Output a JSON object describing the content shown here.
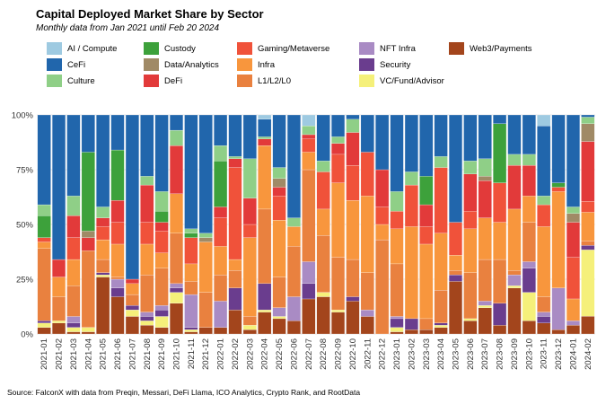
{
  "header": {
    "title": "Capital Deployed Market Share by Sector",
    "subtitle": "Monthly data from Jan 2021 until Feb 20 2024"
  },
  "footer": {
    "source": "Source: FalconX with data from Preqin, Messari, DeFi Llama, ICO Analytics, Crypto Rank, and RootData"
  },
  "colors": {
    "AI / Compute": "#9ecae1",
    "CeFi": "#2166ac",
    "Culture": "#8fcf87",
    "Custody": "#3da13b",
    "Data/Analytics": "#a08a66",
    "DeFi": "#e23a3a",
    "Gaming/Metaverse": "#f0523a",
    "Infra": "#f8963d",
    "L1/L2/L0": "#e9813f",
    "NFT Infra": "#a98bc4",
    "Security": "#6a3d8e",
    "VC/Fund/Advisor": "#f5f07a",
    "Web3/Payments": "#a3451c"
  },
  "legend_rows": [
    [
      "AI / Compute",
      "Custody",
      "Gaming/Metaverse",
      "NFT Infra",
      "Web3/Payments"
    ],
    [
      "CeFi",
      "Data/Analytics",
      "Infra",
      "Security"
    ],
    [
      "Culture",
      "DeFi",
      "L1/L2/L0",
      "VC/Fund/Advisor"
    ]
  ],
  "chart_data": {
    "type": "bar",
    "stacked": true,
    "title": "Capital Deployed Market Share by Sector",
    "xlabel": "",
    "ylabel": "",
    "ylim": [
      0,
      100
    ],
    "yticks": [
      0,
      25,
      50,
      75,
      100
    ],
    "ytick_labels": [
      "0%",
      "25%",
      "50%",
      "75%",
      "100%"
    ],
    "grid": true,
    "legend_position": "top",
    "stack_order": [
      "Web3/Payments",
      "VC/Fund/Advisor",
      "Security",
      "NFT Infra",
      "L1/L2/L0",
      "Infra",
      "Gaming/Metaverse",
      "DeFi",
      "Data/Analytics",
      "Custody",
      "Culture",
      "CeFi",
      "AI / Compute"
    ],
    "categories": [
      "2021-01",
      "2021-02",
      "2021-03",
      "2021-04",
      "2021-05",
      "2021-06",
      "2021-07",
      "2021-08",
      "2021-09",
      "2021-10",
      "2021-11",
      "2021-12",
      "2022-01",
      "2022-02",
      "2022-03",
      "2022-04",
      "2022-05",
      "2022-06",
      "2022-07",
      "2022-08",
      "2022-09",
      "2022-10",
      "2022-11",
      "2022-12",
      "2023-01",
      "2023-02",
      "2023-03",
      "2023-04",
      "2023-05",
      "2023-06",
      "2023-07",
      "2023-08",
      "2023-09",
      "2023-10",
      "2023-11",
      "2023-12",
      "2024-01",
      "2024-02"
    ],
    "series": [
      {
        "name": "Web3/Payments",
        "values": [
          3,
          5,
          1,
          1,
          26,
          17,
          8,
          4,
          3,
          14,
          1,
          3,
          3,
          11,
          2,
          10,
          7,
          6,
          16,
          17,
          10,
          15,
          8,
          0,
          1,
          2,
          2,
          3,
          24,
          6,
          12,
          4,
          21,
          6,
          5,
          2,
          4,
          8
        ]
      },
      {
        "name": "VC/Fund/Advisor",
        "values": [
          2,
          1,
          2,
          2,
          1,
          0,
          3,
          2,
          5,
          5,
          1,
          0,
          0,
          0,
          2,
          1,
          1,
          0,
          0,
          2,
          1,
          0,
          0,
          0,
          2,
          0,
          0,
          1,
          0,
          1,
          1,
          0,
          1,
          13,
          0,
          0,
          0,
          30
        ]
      },
      {
        "name": "Security",
        "values": [
          1,
          0,
          2,
          0,
          1,
          4,
          2,
          2,
          3,
          2,
          1,
          0,
          0,
          10,
          0,
          12,
          0,
          0,
          7,
          0,
          0,
          2,
          0,
          0,
          4,
          5,
          0,
          1,
          3,
          0,
          0,
          10,
          0,
          11,
          3,
          0,
          0,
          2
        ]
      },
      {
        "name": "NFT Infra",
        "values": [
          0,
          0,
          3,
          0,
          0,
          4,
          0,
          2,
          2,
          2,
          15,
          0,
          12,
          0,
          0,
          0,
          4,
          11,
          10,
          0,
          0,
          0,
          3,
          0,
          1,
          0,
          0,
          0,
          0,
          0,
          2,
          0,
          5,
          3,
          2,
          19,
          2,
          0
        ]
      },
      {
        "name": "L1/L2/L0",
        "values": [
          33,
          11,
          14,
          35,
          6,
          1,
          5,
          17,
          17,
          23,
          6,
          16,
          12,
          8,
          4,
          34,
          14,
          23,
          42,
          26,
          24,
          17,
          17,
          43,
          24,
          0,
          5,
          15,
          2,
          21,
          19,
          20,
          2,
          18,
          7,
          0,
          0,
          2
        ]
      },
      {
        "name": "Infra",
        "values": [
          3,
          9,
          12,
          0,
          9,
          15,
          5,
          14,
          7,
          18,
          8,
          23,
          13,
          5,
          36,
          29,
          26,
          9,
          8,
          12,
          34,
          27,
          35,
          7,
          16,
          42,
          34,
          26,
          7,
          20,
          19,
          17,
          28,
          12,
          32,
          44,
          10,
          13
        ]
      },
      {
        "name": "Gaming/Metaverse",
        "values": [
          2,
          0,
          10,
          0,
          6,
          10,
          0,
          10,
          10,
          0,
          12,
          0,
          13,
          42,
          6,
          0,
          11,
          0,
          6,
          17,
          13,
          16,
          20,
          8,
          8,
          19,
          8,
          30,
          15,
          8,
          0,
          18,
          0,
          0,
          10,
          2,
          19,
          5
        ]
      },
      {
        "name": "DeFi",
        "values": [
          0,
          8,
          10,
          6,
          4,
          10,
          2,
          17,
          4,
          22,
          0,
          0,
          5,
          4,
          12,
          3,
          4,
          0,
          2,
          0,
          5,
          15,
          0,
          17,
          0,
          0,
          10,
          0,
          0,
          17,
          17,
          0,
          20,
          14,
          0,
          0,
          16,
          27
        ]
      },
      {
        "name": "Data/Analytics",
        "values": [
          0,
          0,
          0,
          3,
          0,
          0,
          0,
          0,
          0,
          0,
          0,
          2,
          0,
          0,
          0,
          0,
          4,
          0,
          0,
          0,
          0,
          0,
          0,
          0,
          0,
          0,
          0,
          0,
          0,
          0,
          2,
          0,
          0,
          0,
          0,
          0,
          4,
          8
        ]
      },
      {
        "name": "Custody",
        "values": [
          10,
          0,
          0,
          36,
          0,
          23,
          0,
          0,
          5,
          0,
          2,
          0,
          21,
          0,
          0,
          0,
          0,
          0,
          0,
          0,
          0,
          0,
          0,
          0,
          0,
          0,
          13,
          0,
          0,
          0,
          0,
          27,
          0,
          0,
          0,
          2,
          0,
          0
        ]
      },
      {
        "name": "Culture",
        "values": [
          5,
          0,
          9,
          0,
          5,
          0,
          0,
          4,
          9,
          7,
          2,
          2,
          7,
          1,
          18,
          1,
          5,
          4,
          4,
          5,
          3,
          6,
          0,
          0,
          9,
          6,
          0,
          5,
          0,
          6,
          8,
          0,
          5,
          5,
          4,
          0,
          3,
          3
        ]
      },
      {
        "name": "CeFi",
        "values": [
          41,
          66,
          37,
          17,
          42,
          16,
          75,
          28,
          35,
          7,
          52,
          54,
          14,
          19,
          20,
          8,
          24,
          47,
          0,
          21,
          10,
          2,
          17,
          25,
          35,
          26,
          28,
          19,
          49,
          21,
          20,
          4,
          18,
          18,
          32,
          31,
          42,
          1
        ]
      },
      {
        "name": "AI / Compute",
        "values": [
          0,
          0,
          0,
          0,
          0,
          0,
          0,
          0,
          0,
          0,
          0,
          0,
          0,
          0,
          0,
          2,
          0,
          0,
          5,
          0,
          0,
          0,
          0,
          0,
          0,
          0,
          0,
          0,
          0,
          0,
          0,
          0,
          0,
          0,
          5,
          0,
          0,
          0
        ]
      }
    ]
  }
}
